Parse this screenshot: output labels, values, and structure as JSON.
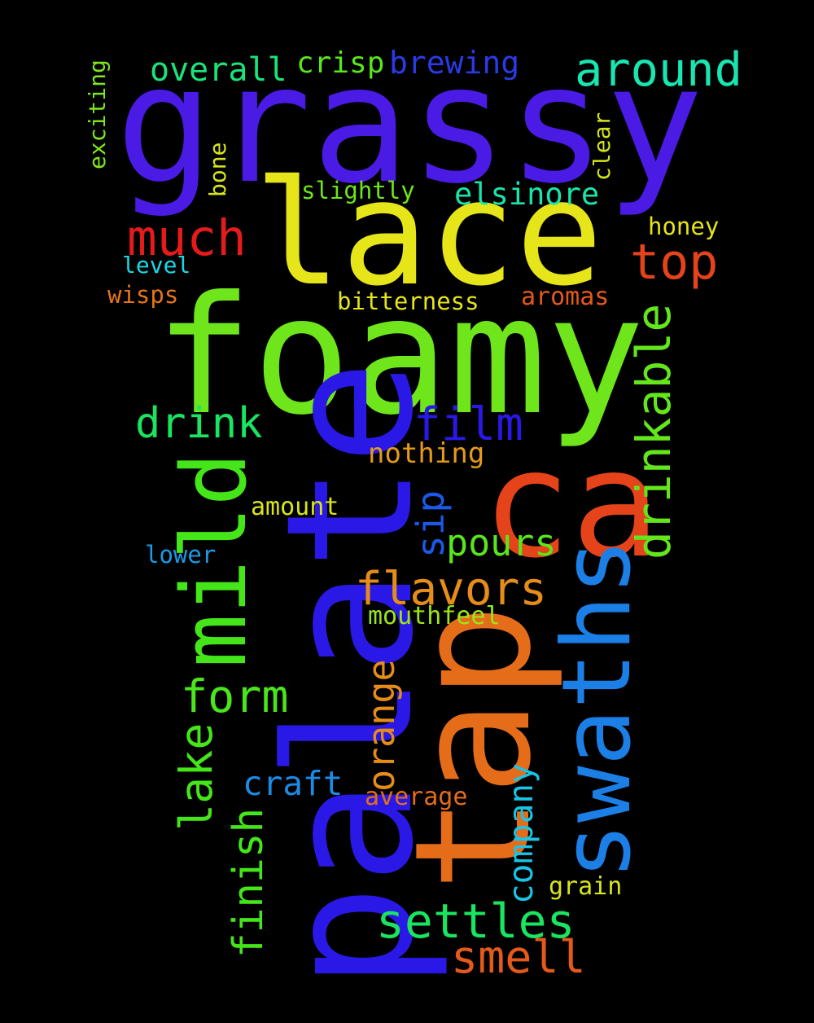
{
  "words": [
    {
      "id": "grassy",
      "text": "grassy",
      "color": "#4b1be6"
    },
    {
      "id": "lace",
      "text": "lace",
      "color": "#e5e519"
    },
    {
      "id": "foamy",
      "text": "foamy",
      "color": "#6ee61b"
    },
    {
      "id": "ca",
      "text": "ca",
      "color": "#e5431a"
    },
    {
      "id": "palate",
      "text": "palate",
      "color": "#2a19e6"
    },
    {
      "id": "tap",
      "text": "tap",
      "color": "#e56d19"
    },
    {
      "id": "swaths",
      "text": "swaths",
      "color": "#1b7fe6"
    },
    {
      "id": "mild",
      "text": "mild",
      "color": "#44e619"
    },
    {
      "id": "drinkable",
      "text": "drinkable",
      "color": "#63e61b"
    },
    {
      "id": "much",
      "text": "much",
      "color": "#e51b1b"
    },
    {
      "id": "top",
      "text": "top",
      "color": "#e5431a"
    },
    {
      "id": "around",
      "text": "around",
      "color": "#19e5b0"
    },
    {
      "id": "overall",
      "text": "overall",
      "color": "#19e57a"
    },
    {
      "id": "crisp",
      "text": "crisp",
      "color": "#59e61b"
    },
    {
      "id": "brewing",
      "text": "brewing",
      "color": "#2a3ae6"
    },
    {
      "id": "exciting",
      "text": "exciting",
      "color": "#7fe61b"
    },
    {
      "id": "bone",
      "text": "bone",
      "color": "#d8e51a"
    },
    {
      "id": "clear",
      "text": "clear",
      "color": "#d0e51a"
    },
    {
      "id": "slightly",
      "text": "slightly",
      "color": "#6ee61b"
    },
    {
      "id": "elsinore",
      "text": "elsinore",
      "color": "#19e5ab"
    },
    {
      "id": "honey",
      "text": "honey",
      "color": "#e5e519"
    },
    {
      "id": "level",
      "text": "level",
      "color": "#19d8e5"
    },
    {
      "id": "wisps",
      "text": "wisps",
      "color": "#e57519"
    },
    {
      "id": "bitterness",
      "text": "bitterness",
      "color": "#e5e519"
    },
    {
      "id": "aromas",
      "text": "aromas",
      "color": "#e5591a"
    },
    {
      "id": "drink",
      "text": "drink",
      "color": "#19e560"
    },
    {
      "id": "film",
      "text": "film",
      "color": "#2a19e6"
    },
    {
      "id": "nothing",
      "text": "nothing",
      "color": "#e59a19"
    },
    {
      "id": "sip",
      "text": "sip",
      "color": "#1b59e6"
    },
    {
      "id": "amount",
      "text": "amount",
      "color": "#d8e51a"
    },
    {
      "id": "pours",
      "text": "pours",
      "color": "#59e61b"
    },
    {
      "id": "lower",
      "text": "lower",
      "color": "#1b9ae6"
    },
    {
      "id": "flavors",
      "text": "flavors",
      "color": "#e58c19"
    },
    {
      "id": "mouthfeel",
      "text": "mouthfeel",
      "color": "#9ae61b"
    },
    {
      "id": "form",
      "text": "form",
      "color": "#4ae61b"
    },
    {
      "id": "orange",
      "text": "orange",
      "color": "#e58c19"
    },
    {
      "id": "lake",
      "text": "lake",
      "color": "#44e619"
    },
    {
      "id": "craft",
      "text": "craft",
      "color": "#1b8ce6"
    },
    {
      "id": "company",
      "text": "company",
      "color": "#19c4e5"
    },
    {
      "id": "average",
      "text": "average",
      "color": "#e56d19"
    },
    {
      "id": "finish",
      "text": "finish",
      "color": "#44e619"
    },
    {
      "id": "grain",
      "text": "grain",
      "color": "#d8e51a"
    },
    {
      "id": "settles",
      "text": "settles",
      "color": "#19e560"
    },
    {
      "id": "smell",
      "text": "smell",
      "color": "#e5591a"
    }
  ]
}
